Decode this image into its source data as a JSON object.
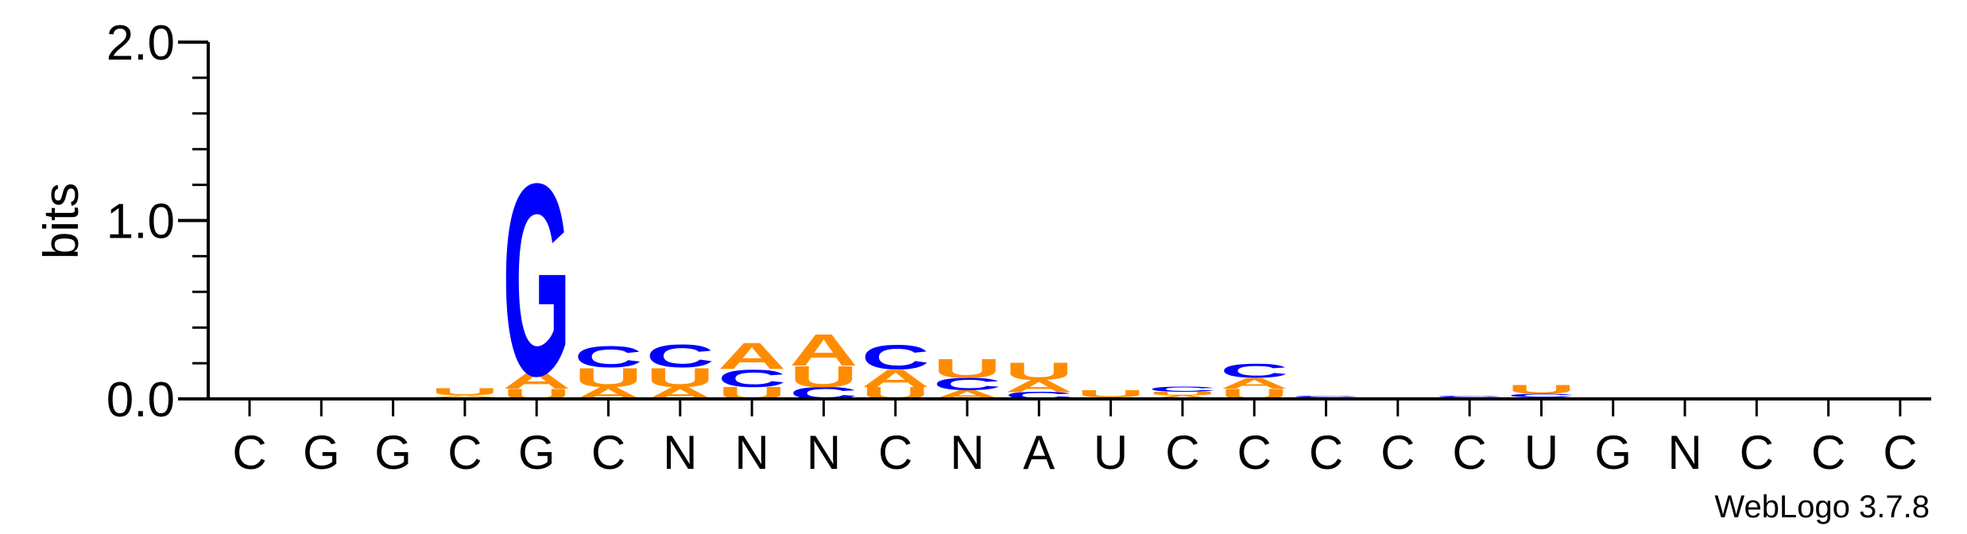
{
  "chart_data": {
    "type": "sequence-logo",
    "ylabel": "bits",
    "ylim": [
      0,
      2
    ],
    "yticks": [
      "0.0",
      "1.0",
      "2.0"
    ],
    "credit": "WebLogo 3.7.8",
    "colors": {
      "A": "#ff8c00",
      "U": "#ff8c00",
      "C": "#0000ff",
      "G": "#0000ff"
    },
    "positions": [
      {
        "label": "C",
        "stack": []
      },
      {
        "label": "G",
        "stack": []
      },
      {
        "label": "G",
        "stack": []
      },
      {
        "label": "C",
        "stack": [
          {
            "letter": "C",
            "height": 0.01
          },
          {
            "letter": "A",
            "height": 0.01
          },
          {
            "letter": "U",
            "height": 0.04
          }
        ]
      },
      {
        "label": "G",
        "stack": [
          {
            "letter": "U",
            "height": 0.06
          },
          {
            "letter": "A",
            "height": 0.1
          },
          {
            "letter": "G",
            "height": 1.1
          }
        ]
      },
      {
        "label": "C",
        "stack": [
          {
            "letter": "A",
            "height": 0.07
          },
          {
            "letter": "U",
            "height": 0.11
          },
          {
            "letter": "C",
            "height": 0.12
          }
        ]
      },
      {
        "label": "N",
        "stack": [
          {
            "letter": "A",
            "height": 0.07
          },
          {
            "letter": "U",
            "height": 0.11
          },
          {
            "letter": "C",
            "height": 0.13
          }
        ]
      },
      {
        "label": "N",
        "stack": [
          {
            "letter": "U",
            "height": 0.07
          },
          {
            "letter": "C",
            "height": 0.1
          },
          {
            "letter": "A",
            "height": 0.15
          }
        ]
      },
      {
        "label": "N",
        "stack": [
          {
            "letter": "C",
            "height": 0.07
          },
          {
            "letter": "U",
            "height": 0.12
          },
          {
            "letter": "A",
            "height": 0.18
          }
        ]
      },
      {
        "label": "C",
        "stack": [
          {
            "letter": "U",
            "height": 0.07
          },
          {
            "letter": "A",
            "height": 0.1
          },
          {
            "letter": "C",
            "height": 0.14
          }
        ]
      },
      {
        "label": "N",
        "stack": [
          {
            "letter": "A",
            "height": 0.05
          },
          {
            "letter": "C",
            "height": 0.07
          },
          {
            "letter": "U",
            "height": 0.11
          }
        ]
      },
      {
        "label": "A",
        "stack": [
          {
            "letter": "C",
            "height": 0.04
          },
          {
            "letter": "A",
            "height": 0.07
          },
          {
            "letter": "U",
            "height": 0.1
          }
        ]
      },
      {
        "label": "U",
        "stack": [
          {
            "letter": "A",
            "height": 0.01
          },
          {
            "letter": "U",
            "height": 0.04
          }
        ]
      },
      {
        "label": "C",
        "stack": [
          {
            "letter": "A",
            "height": 0.02
          },
          {
            "letter": "U",
            "height": 0.02
          },
          {
            "letter": "C",
            "height": 0.03
          }
        ]
      },
      {
        "label": "C",
        "stack": [
          {
            "letter": "U",
            "height": 0.06
          },
          {
            "letter": "A",
            "height": 0.06
          },
          {
            "letter": "C",
            "height": 0.08
          }
        ]
      },
      {
        "label": "C",
        "stack": [
          {
            "letter": "A",
            "height": 0.01
          },
          {
            "letter": "C",
            "height": 0.01
          }
        ]
      },
      {
        "label": "C",
        "stack": [
          {
            "letter": "C",
            "height": 0.01
          }
        ]
      },
      {
        "label": "C",
        "stack": [
          {
            "letter": "A",
            "height": 0.01
          },
          {
            "letter": "C",
            "height": 0.01
          }
        ]
      },
      {
        "label": "U",
        "stack": [
          {
            "letter": "A",
            "height": 0.01
          },
          {
            "letter": "C",
            "height": 0.02
          },
          {
            "letter": "U",
            "height": 0.05
          }
        ]
      },
      {
        "label": "G",
        "stack": []
      },
      {
        "label": "N",
        "stack": []
      },
      {
        "label": "C",
        "stack": []
      },
      {
        "label": "C",
        "stack": []
      },
      {
        "label": "C",
        "stack": []
      }
    ]
  }
}
